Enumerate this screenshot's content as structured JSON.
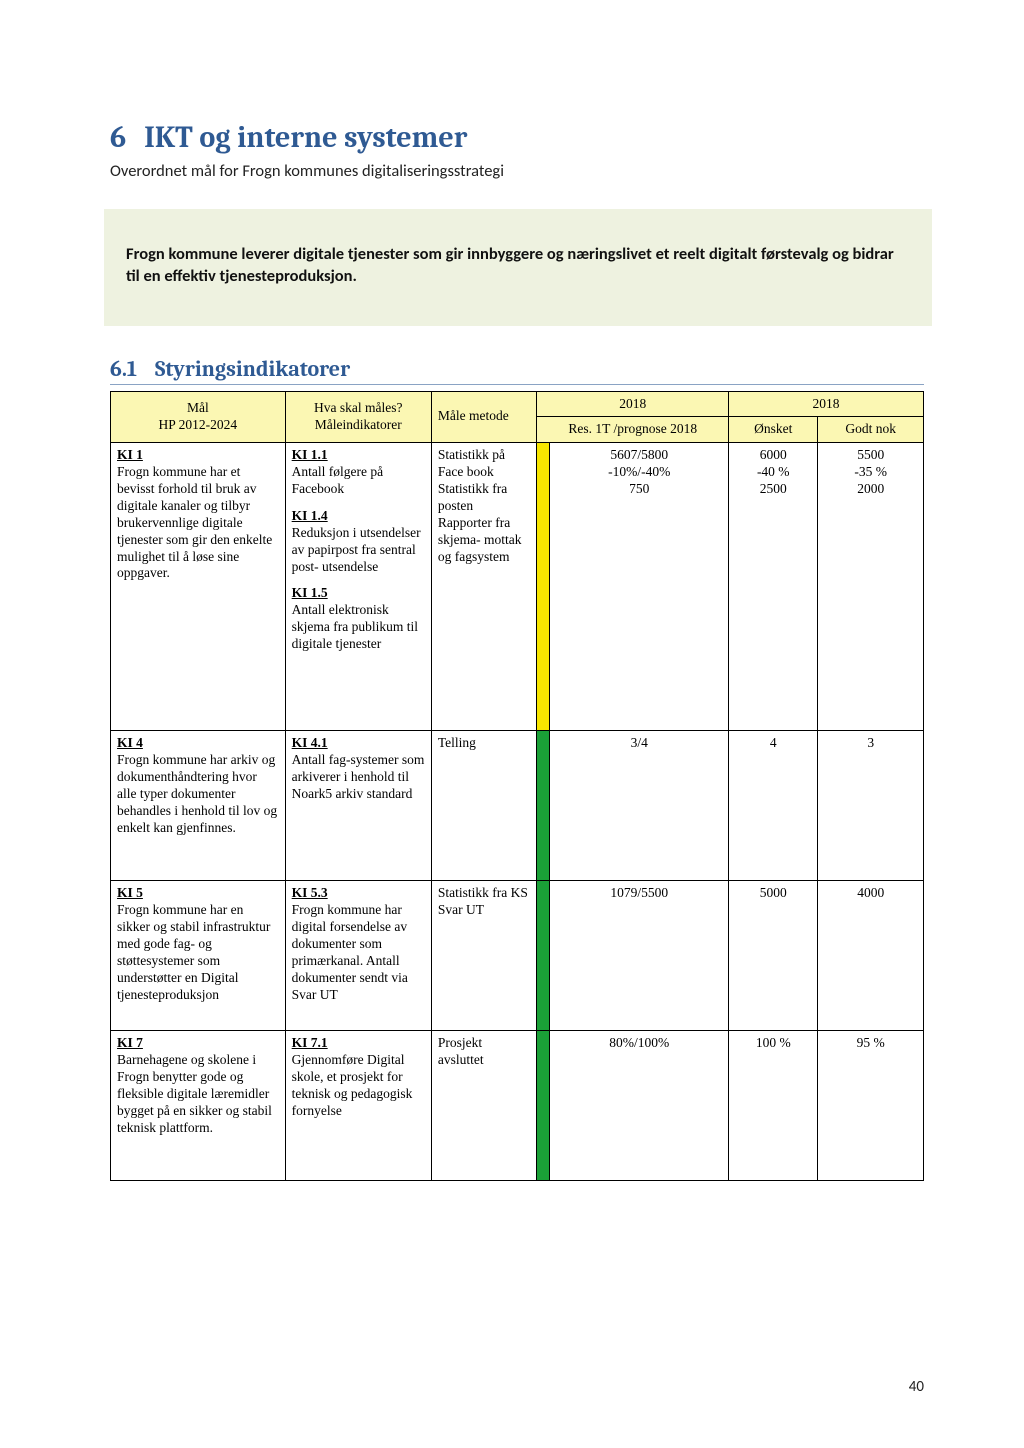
{
  "heading": {
    "number": "6",
    "title": "IKT og interne systemer"
  },
  "subtitle": "Overordnet mål for Frogn kommunes digitaliseringsstrategi",
  "goal_box": "Frogn kommune leverer digitale tjenester som gir innbyggere og næringslivet et reelt digitalt førstevalg og bidrar til en effektiv tjenesteproduksjon.",
  "subheading": {
    "number": "6.1",
    "title": "Styringsindikatorer"
  },
  "table": {
    "header_colors": {
      "bg": "#fbf7b3"
    },
    "columns": {
      "mal": "Mål\nHP 2012-2024",
      "ind": "Hva skal måles?\nMåleindikatorer",
      "met": "Måle metode",
      "year_top": "2018",
      "year_right": "2018",
      "res": "Res. 1T /prognose 2018",
      "onsket": "Ønsket",
      "godt": "Godt nok"
    },
    "strip_colors": {
      "yellow": "#f7e600",
      "green": "#1aa037"
    },
    "rows": [
      {
        "goal_id": "KI 1",
        "goal_text": "Frogn kommune har et bevisst forhold til bruk av digitale kanaler og tilbyr brukervennlige digitale tjenester som gir den enkelte mulighet til å løse sine oppgaver.",
        "strip": "yellow",
        "indicators": [
          {
            "id": "KI 1.1",
            "text": "Antall følgere på Facebook",
            "method": "Statistikk på Face book",
            "res": "5607/5800",
            "onsket": "6000",
            "godt": "5500"
          },
          {
            "id": "KI 1.4",
            "text": "Reduksjon i utsendelser av papirpost fra sentral post- utsendelse",
            "method": "Statistikk fra posten",
            "res": "-10%/-40%",
            "onsket": "-40 %",
            "godt": "-35 %"
          },
          {
            "id": "KI 1.5",
            "text": "Antall elektronisk skjema fra publikum til digitale tjenester",
            "method": "Rapporter fra skjema- mottak og fagsystem",
            "res": "750",
            "onsket": "2500",
            "godt": "2000"
          }
        ]
      },
      {
        "goal_id": "KI 4",
        "goal_text": "Frogn kommune har arkiv og dokumenthåndtering hvor alle typer dokumenter behandles i henhold til lov og enkelt kan gjenfinnes.",
        "strip": "green",
        "indicators": [
          {
            "id": "KI 4.1",
            "text": "Antall fag-systemer som arkiverer i henhold til Noark5 arkiv standard",
            "method": "Telling",
            "res": "3/4",
            "onsket": "4",
            "godt": "3"
          }
        ]
      },
      {
        "goal_id": "KI 5",
        "goal_text": "Frogn kommune har en sikker og stabil infrastruktur med gode fag- og støttesystemer som understøtter en Digital tjenesteproduksjon",
        "strip": "green",
        "indicators": [
          {
            "id": "KI 5.3",
            "text": "Frogn kommune har digital forsendelse av dokumenter som primærkanal. Antall dokumenter sendt via Svar UT",
            "method": "Statistikk fra KS Svar UT",
            "res": "1079/5500",
            "onsket": "5000",
            "godt": "4000"
          }
        ]
      },
      {
        "goal_id": "KI 7",
        "goal_text": "Barnehagene og skolene i Frogn benytter gode og fleksible digitale læremidler bygget på en sikker og stabil teknisk plattform.",
        "strip": "green",
        "indicators": [
          {
            "id": "KI 7.1",
            "text": "Gjennomføre Digital skole, et prosjekt for teknisk og pedagogisk fornyelse",
            "method": "Prosjekt avsluttet",
            "res": "80%/100%",
            "onsket": "100 %",
            "godt": "95 %"
          }
        ]
      }
    ]
  },
  "page_number": "40",
  "colors": {
    "heading": "#2f5a93",
    "goal_bg": "#eef2e0"
  }
}
